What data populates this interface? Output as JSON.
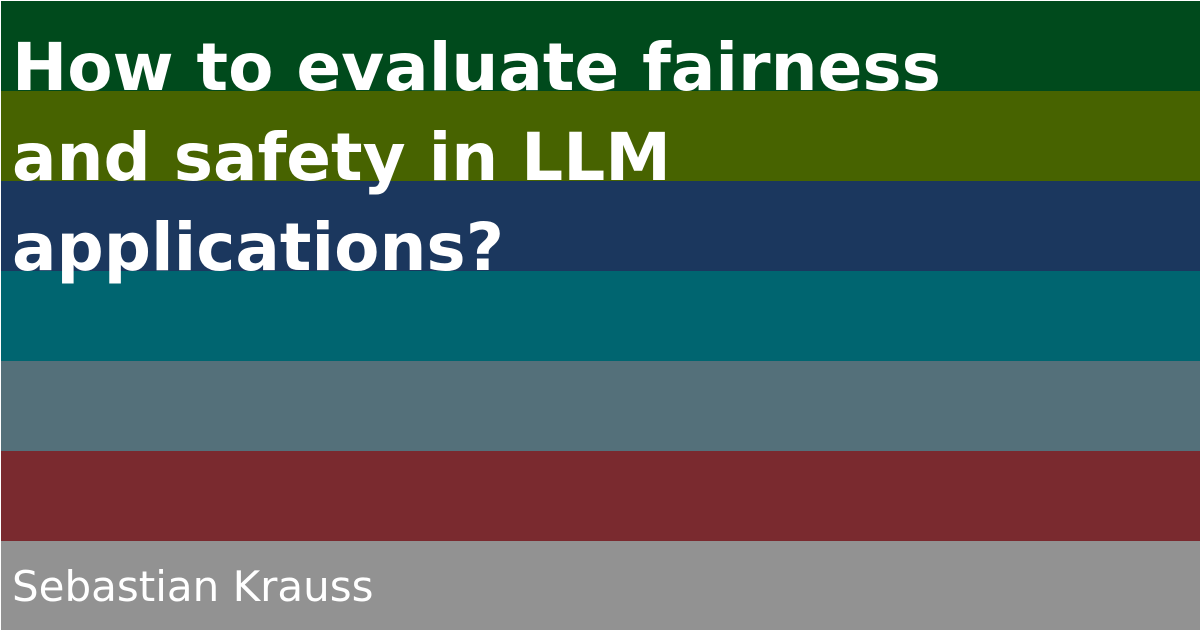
{
  "card": {
    "title_lines": [
      "How to evaluate fairness",
      "and safety in LLM",
      "applications?"
    ],
    "author": "Sebastian Krauss"
  },
  "colors": {
    "stripes": [
      "#004a1c",
      "#476300",
      "#1b375e",
      "#006570",
      "#54707a",
      "#7a2a2f",
      "#929292"
    ],
    "text": "#ffffff"
  }
}
